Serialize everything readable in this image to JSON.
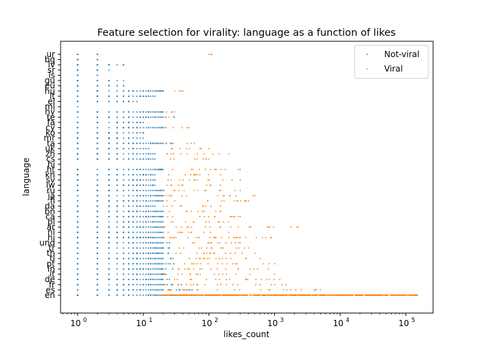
{
  "chart_data": {
    "type": "scatter",
    "title": "Feature selection for virality: language as a function of likes",
    "xlabel": "likes_count",
    "ylabel": "language",
    "xscale": "log",
    "xlim": [
      0.55,
      260000
    ],
    "x_ticks": [
      {
        "value": 1,
        "label": "10",
        "exp": "0"
      },
      {
        "value": 10,
        "label": "10",
        "exp": "1"
      },
      {
        "value": 100,
        "label": "10",
        "exp": "2"
      },
      {
        "value": 1000,
        "label": "10",
        "exp": "3"
      },
      {
        "value": 10000,
        "label": "10",
        "exp": "4"
      },
      {
        "value": 100000,
        "label": "10",
        "exp": "5"
      }
    ],
    "categories": [
      "en",
      "es",
      "fr",
      "de",
      "it",
      "in",
      "pt",
      "tl",
      "th",
      "tr",
      "und",
      "hi",
      "nl",
      "ar",
      "pl",
      "ca",
      "bn",
      "da",
      "fi",
      "ja",
      "ru",
      "iw",
      "sv",
      "kn",
      "ht",
      "hi",
      "cs",
      "zh",
      "uk",
      "ta",
      "mr",
      "ko",
      "cy",
      "fa",
      "te",
      "hy",
      "ml",
      "el",
      "lt",
      "hu",
      "eu",
      "gu",
      "is",
      "sr",
      "lv",
      "bg",
      "ur"
    ],
    "legend": {
      "placement": "top-right",
      "entries": [
        "Not-viral",
        "Viral"
      ]
    },
    "colors": {
      "Not-viral": "#1f77b4",
      "Viral": "#ff7f0e"
    },
    "grid": false,
    "series": [
      {
        "name": "Not-viral",
        "color": "#1f77b4",
        "points_by_category": [
          {
            "category": "en",
            "min": 1,
            "max": 120
          },
          {
            "category": "es",
            "min": 1,
            "max": 60
          },
          {
            "category": "fr",
            "min": 1,
            "max": 40
          },
          {
            "category": "de",
            "min": 1,
            "max": 40
          },
          {
            "category": "it",
            "min": 1,
            "max": 35
          },
          {
            "category": "in",
            "min": 1,
            "max": 30
          },
          {
            "category": "pt",
            "min": 1,
            "max": 30
          },
          {
            "category": "tl",
            "min": 1,
            "max": 30
          },
          {
            "category": "th",
            "min": 1,
            "max": 25
          },
          {
            "category": "tr",
            "min": 1,
            "max": 25
          },
          {
            "category": "und",
            "min": 1,
            "max": 25
          },
          {
            "category": "hi",
            "min": 1,
            "max": 25
          },
          {
            "category": "nl",
            "min": 1,
            "max": 20
          },
          {
            "category": "ar",
            "min": 1,
            "max": 25
          },
          {
            "category": "pl",
            "min": 1,
            "max": 20
          },
          {
            "category": "ca",
            "min": 1,
            "max": 20
          },
          {
            "category": "bn",
            "min": 1,
            "max": 20
          },
          {
            "category": "da",
            "min": 1,
            "max": 15
          },
          {
            "category": "fi",
            "min": 1,
            "max": 20
          },
          {
            "category": "ja",
            "min": 1,
            "max": 20
          },
          {
            "category": "ru",
            "min": 1,
            "max": 20
          },
          {
            "category": "iw",
            "min": 1,
            "max": 15
          },
          {
            "category": "sv",
            "min": 1,
            "max": 15
          },
          {
            "category": "kn",
            "min": 1,
            "max": 15
          },
          {
            "category": "ht",
            "min": 1,
            "max": 20
          },
          {
            "category": "hi",
            "min": 1,
            "max": 15
          },
          {
            "category": "cs",
            "min": 1,
            "max": 15
          },
          {
            "category": "zh",
            "min": 1,
            "max": 15
          },
          {
            "category": "uk",
            "min": 1,
            "max": 12
          },
          {
            "category": "ta",
            "min": 1,
            "max": 30
          },
          {
            "category": "mr",
            "min": 1,
            "max": 10
          },
          {
            "category": "ko",
            "min": 1,
            "max": 10
          },
          {
            "category": "cy",
            "min": 1,
            "max": 25
          },
          {
            "category": "fa",
            "min": 1,
            "max": 10
          },
          {
            "category": "te",
            "min": 1,
            "max": 30
          },
          {
            "category": "hy",
            "min": 1,
            "max": 30
          },
          {
            "category": "ml",
            "min": 1,
            "max": 1
          },
          {
            "category": "el",
            "min": 1,
            "max": 8
          },
          {
            "category": "lt",
            "min": 1,
            "max": 15
          },
          {
            "category": "hu",
            "min": 1,
            "max": 20
          },
          {
            "category": "eu",
            "min": 1,
            "max": 5
          },
          {
            "category": "gu",
            "min": 1,
            "max": 5
          },
          {
            "category": "is",
            "min": 1,
            "max": 2
          },
          {
            "category": "sr",
            "min": 1,
            "max": 3
          },
          {
            "category": "lv",
            "min": 1,
            "max": 5
          },
          {
            "category": "bg",
            "min": 1,
            "max": 2
          },
          {
            "category": "ur",
            "min": 1,
            "max": 2
          }
        ]
      },
      {
        "name": "Viral",
        "color": "#ff7f0e",
        "points_by_category": [
          {
            "category": "en",
            "min": 20,
            "max": 150000
          },
          {
            "category": "es",
            "min": 20,
            "max": 5000
          },
          {
            "category": "fr",
            "min": 20,
            "max": 1500
          },
          {
            "category": "de",
            "min": 20,
            "max": 1200
          },
          {
            "category": "it",
            "min": 20,
            "max": 1000
          },
          {
            "category": "in",
            "min": 20,
            "max": 800
          },
          {
            "category": "pt",
            "min": 20,
            "max": 1000
          },
          {
            "category": "tl",
            "min": 20,
            "max": 600
          },
          {
            "category": "th",
            "min": 20,
            "max": 500
          },
          {
            "category": "tr",
            "min": 20,
            "max": 400
          },
          {
            "category": "und",
            "min": 20,
            "max": 300
          },
          {
            "category": "hi",
            "min": 20,
            "max": 300
          },
          {
            "category": "nl",
            "min": 20,
            "max": 200
          },
          {
            "category": "ar",
            "min": 20,
            "max": 2300
          },
          {
            "category": "pl",
            "min": 20,
            "max": 200
          },
          {
            "category": "ca",
            "min": 20,
            "max": 300
          },
          {
            "category": "bn",
            "min": 20,
            "max": 150
          },
          {
            "category": "da",
            "min": 20,
            "max": 150
          },
          {
            "category": "fi",
            "min": 20,
            "max": 400
          },
          {
            "category": "ja",
            "min": 20,
            "max": 500
          },
          {
            "category": "ru",
            "min": 20,
            "max": 300
          },
          {
            "category": "iw",
            "min": 20,
            "max": 150
          },
          {
            "category": "sv",
            "min": 20,
            "max": 300
          },
          {
            "category": "kn",
            "min": 20,
            "max": 150
          },
          {
            "category": "ht",
            "min": 20,
            "max": 300
          },
          {
            "category": "hi",
            "min": 20,
            "max": 900
          },
          {
            "category": "cs",
            "min": 20,
            "max": 100
          },
          {
            "category": "zh",
            "min": 20,
            "max": 200
          },
          {
            "category": "uk",
            "min": 20,
            "max": 100
          },
          {
            "category": "ta",
            "min": 20,
            "max": 60
          },
          {
            "category": "cy",
            "min": 20,
            "max": 50
          },
          {
            "category": "te",
            "min": 20,
            "max": 30
          },
          {
            "category": "hy",
            "min": 20,
            "max": 30
          },
          {
            "category": "hu",
            "min": 20,
            "max": 40
          },
          {
            "category": "ur",
            "min": 100,
            "max": 110
          }
        ]
      }
    ]
  }
}
